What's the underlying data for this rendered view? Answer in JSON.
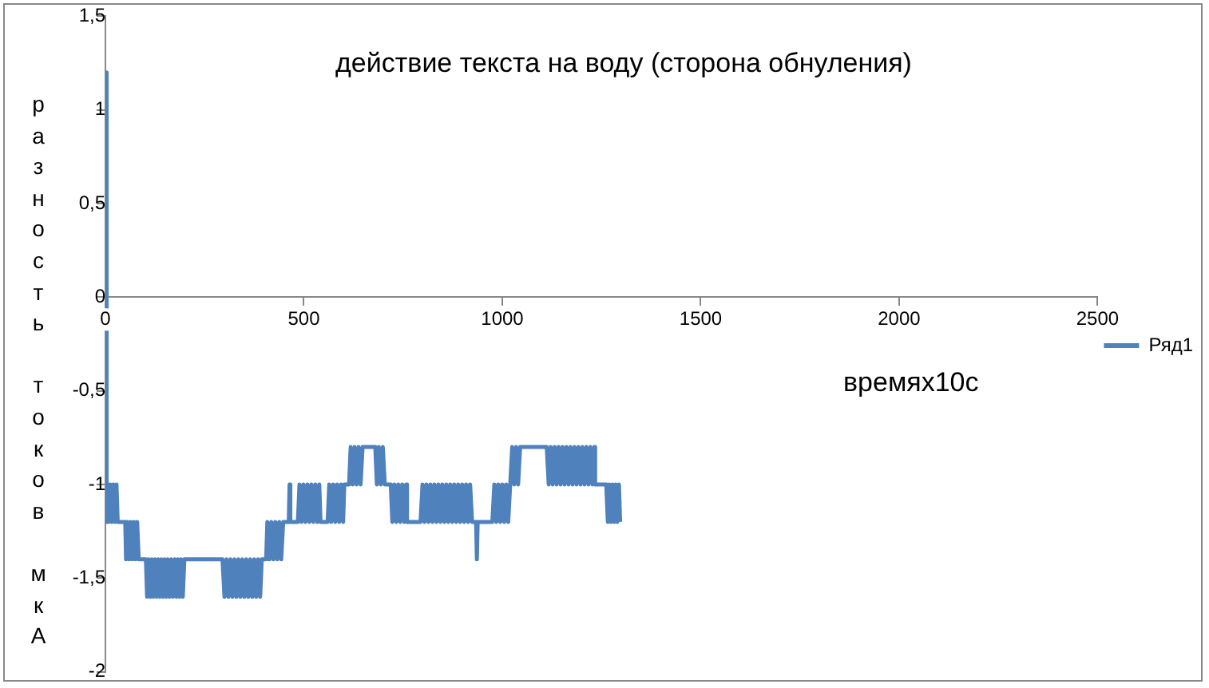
{
  "chart_data": {
    "type": "line",
    "title": "действие текста на воду (сторона обнуления)",
    "xlabel": "времях10с",
    "ylabel": "разность токов мкА",
    "xlim": [
      0,
      2500
    ],
    "xticks": [
      0,
      500,
      1000,
      1500,
      2000,
      2500
    ],
    "ylim": [
      -2,
      1.5
    ],
    "yticks": [
      -2,
      {
        "value": -1.5,
        "label": "-1,5"
      },
      -1,
      {
        "value": -0.5,
        "label": "-0,5"
      },
      0,
      {
        "value": 0.5,
        "label": "0,5"
      },
      1,
      {
        "value": 1.5,
        "label": "1,5"
      }
    ],
    "grid": false,
    "legend": "right",
    "marker": "none",
    "line_style": "solid",
    "series": [
      {
        "name": "Ряд1",
        "color": "#4f81bd",
        "x": [
          0,
          2,
          4,
          8,
          12,
          16,
          20,
          24,
          28,
          31,
          50,
          52,
          56,
          60,
          64,
          68,
          72,
          76,
          80,
          84,
          102,
          105,
          109,
          113,
          117,
          121,
          125,
          129,
          133,
          137,
          141,
          145,
          149,
          153,
          157,
          161,
          166,
          170,
          175,
          179,
          183,
          187,
          191,
          195,
          199,
          295,
          300,
          305,
          310,
          315,
          320,
          325,
          330,
          335,
          340,
          345,
          350,
          355,
          360,
          365,
          370,
          375,
          380,
          385,
          390,
          394,
          405,
          408,
          413,
          418,
          423,
          428,
          433,
          438,
          443,
          448,
          462,
          464,
          466,
          485,
          489,
          494,
          499,
          504,
          509,
          514,
          519,
          524,
          529,
          534,
          539,
          542,
          560,
          564,
          569,
          574,
          579,
          584,
          589,
          594,
          599,
          602,
          614,
          618,
          623,
          628,
          633,
          638,
          643,
          648,
          652,
          680,
          684,
          689,
          694,
          699,
          704,
          707,
          719,
          723,
          728,
          733,
          738,
          743,
          748,
          753,
          758,
          760,
          794,
          799,
          804,
          809,
          814,
          819,
          824,
          829,
          834,
          839,
          844,
          849,
          854,
          859,
          864,
          869,
          874,
          879,
          884,
          889,
          894,
          899,
          904,
          909,
          914,
          919,
          924,
          934,
          936,
          938,
          975,
          980,
          985,
          990,
          995,
          1000,
          1005,
          1010,
          1015,
          1020,
          1025,
          1030,
          1035,
          1040,
          1045,
          1050,
          1112,
          1117,
          1122,
          1127,
          1132,
          1137,
          1142,
          1147,
          1152,
          1157,
          1162,
          1167,
          1172,
          1177,
          1182,
          1187,
          1192,
          1197,
          1202,
          1207,
          1212,
          1217,
          1222,
          1227,
          1232,
          1234,
          1262,
          1266,
          1270,
          1274,
          1278,
          1282,
          1286,
          1290,
          1294,
          1297
        ],
        "values": [
          1.2,
          -1.2,
          -1.0,
          -1.2,
          -1.0,
          -1.2,
          -1.0,
          -1.2,
          -1.0,
          -1.2,
          -1.2,
          -1.4,
          -1.2,
          -1.4,
          -1.2,
          -1.4,
          -1.2,
          -1.4,
          -1.2,
          -1.4,
          -1.4,
          -1.6,
          -1.4,
          -1.6,
          -1.4,
          -1.6,
          -1.4,
          -1.6,
          -1.4,
          -1.6,
          -1.4,
          -1.6,
          -1.4,
          -1.6,
          -1.4,
          -1.6,
          -1.4,
          -1.6,
          -1.4,
          -1.6,
          -1.4,
          -1.6,
          -1.4,
          -1.6,
          -1.4,
          -1.4,
          -1.6,
          -1.4,
          -1.6,
          -1.4,
          -1.6,
          -1.4,
          -1.6,
          -1.4,
          -1.6,
          -1.4,
          -1.6,
          -1.4,
          -1.6,
          -1.4,
          -1.6,
          -1.4,
          -1.6,
          -1.4,
          -1.6,
          -1.4,
          -1.4,
          -1.2,
          -1.4,
          -1.2,
          -1.4,
          -1.2,
          -1.4,
          -1.2,
          -1.4,
          -1.2,
          -1.2,
          -1.0,
          -1.2,
          -1.2,
          -1.0,
          -1.2,
          -1.0,
          -1.2,
          -1.0,
          -1.2,
          -1.0,
          -1.2,
          -1.0,
          -1.2,
          -1.0,
          -1.2,
          -1.2,
          -1.0,
          -1.2,
          -1.0,
          -1.2,
          -1.0,
          -1.2,
          -1.0,
          -1.2,
          -1.0,
          -1.0,
          -0.8,
          -1.0,
          -0.8,
          -1.0,
          -0.8,
          -1.0,
          -0.8,
          -0.8,
          -0.8,
          -1.0,
          -0.8,
          -1.0,
          -0.8,
          -1.0,
          -1.0,
          -1.0,
          -1.2,
          -1.0,
          -1.2,
          -1.0,
          -1.2,
          -1.0,
          -1.2,
          -1.0,
          -1.2,
          -1.2,
          -1.0,
          -1.2,
          -1.0,
          -1.2,
          -1.0,
          -1.2,
          -1.0,
          -1.2,
          -1.0,
          -1.2,
          -1.0,
          -1.2,
          -1.0,
          -1.2,
          -1.0,
          -1.2,
          -1.0,
          -1.2,
          -1.0,
          -1.2,
          -1.0,
          -1.2,
          -1.0,
          -1.2,
          -1.0,
          -1.2,
          -1.2,
          -1.4,
          -1.2,
          -1.2,
          -1.0,
          -1.2,
          -1.0,
          -1.2,
          -1.0,
          -1.2,
          -1.0,
          -1.2,
          -1.0,
          -0.8,
          -1.0,
          -0.8,
          -1.0,
          -0.8,
          -0.8,
          -0.8,
          -1.0,
          -0.8,
          -1.0,
          -0.8,
          -1.0,
          -0.8,
          -1.0,
          -0.8,
          -1.0,
          -0.8,
          -1.0,
          -0.8,
          -1.0,
          -0.8,
          -1.0,
          -0.8,
          -1.0,
          -0.8,
          -1.0,
          -0.8,
          -1.0,
          -0.8,
          -1.0,
          -0.8,
          -1.0,
          -1.0,
          -1.2,
          -1.0,
          -1.2,
          -1.0,
          -1.2,
          -1.0,
          -1.2,
          -1.0,
          -1.2
        ]
      }
    ]
  }
}
